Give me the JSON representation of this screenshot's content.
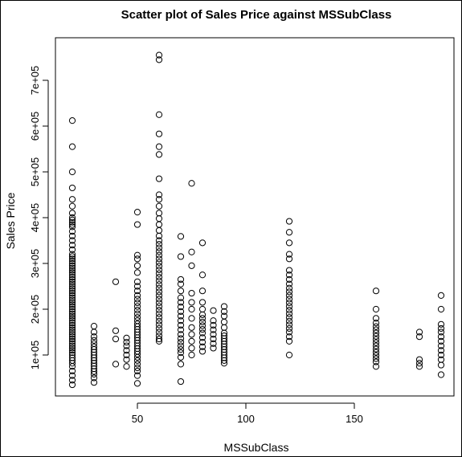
{
  "chart_data": {
    "type": "scatter",
    "title": "Scatter plot of Sales Price against  MSSubClass",
    "xlabel": "MSSubClass",
    "ylabel": "Sales Price",
    "xlim": [
      15,
      195
    ],
    "ylim": [
      0,
      760000
    ],
    "x_ticks": [
      50,
      100,
      150
    ],
    "x_tick_labels": [
      "50",
      "100",
      "150"
    ],
    "y_ticks": [
      100000,
      200000,
      300000,
      400000,
      500000,
      600000,
      700000
    ],
    "y_tick_labels": [
      "1e+05",
      "2e+05",
      "3e+05",
      "4e+05",
      "5e+05",
      "6e+05",
      "7e+05"
    ],
    "grid": false,
    "legend": "none",
    "marker": "open-circle",
    "point_color": "#000000",
    "points": [
      [
        20,
        35000
      ],
      [
        20,
        45000
      ],
      [
        20,
        55000
      ],
      [
        20,
        65000
      ],
      [
        20,
        75000
      ],
      [
        20,
        82000
      ],
      [
        20,
        88000
      ],
      [
        20,
        94000
      ],
      [
        20,
        100000
      ],
      [
        20,
        105000
      ],
      [
        20,
        110000
      ],
      [
        20,
        115000
      ],
      [
        20,
        120000
      ],
      [
        20,
        125000
      ],
      [
        20,
        130000
      ],
      [
        20,
        135000
      ],
      [
        20,
        140000
      ],
      [
        20,
        145000
      ],
      [
        20,
        150000
      ],
      [
        20,
        155000
      ],
      [
        20,
        160000
      ],
      [
        20,
        165000
      ],
      [
        20,
        170000
      ],
      [
        20,
        175000
      ],
      [
        20,
        180000
      ],
      [
        20,
        185000
      ],
      [
        20,
        190000
      ],
      [
        20,
        195000
      ],
      [
        20,
        200000
      ],
      [
        20,
        205000
      ],
      [
        20,
        210000
      ],
      [
        20,
        215000
      ],
      [
        20,
        220000
      ],
      [
        20,
        225000
      ],
      [
        20,
        230000
      ],
      [
        20,
        235000
      ],
      [
        20,
        240000
      ],
      [
        20,
        245000
      ],
      [
        20,
        250000
      ],
      [
        20,
        255000
      ],
      [
        20,
        260000
      ],
      [
        20,
        265000
      ],
      [
        20,
        270000
      ],
      [
        20,
        275000
      ],
      [
        20,
        280000
      ],
      [
        20,
        285000
      ],
      [
        20,
        290000
      ],
      [
        20,
        295000
      ],
      [
        20,
        300000
      ],
      [
        20,
        305000
      ],
      [
        20,
        310000
      ],
      [
        20,
        315000
      ],
      [
        20,
        320000
      ],
      [
        20,
        330000
      ],
      [
        20,
        340000
      ],
      [
        20,
        350000
      ],
      [
        20,
        360000
      ],
      [
        20,
        370000
      ],
      [
        20,
        380000
      ],
      [
        20,
        385000
      ],
      [
        20,
        390000
      ],
      [
        20,
        395000
      ],
      [
        20,
        400000
      ],
      [
        20,
        410000
      ],
      [
        20,
        425000
      ],
      [
        20,
        440000
      ],
      [
        20,
        465000
      ],
      [
        20,
        500000
      ],
      [
        20,
        555000
      ],
      [
        20,
        612000
      ],
      [
        30,
        40000
      ],
      [
        30,
        50000
      ],
      [
        30,
        58000
      ],
      [
        30,
        64000
      ],
      [
        30,
        70000
      ],
      [
        30,
        76000
      ],
      [
        30,
        82000
      ],
      [
        30,
        88000
      ],
      [
        30,
        94000
      ],
      [
        30,
        100000
      ],
      [
        30,
        106000
      ],
      [
        30,
        112000
      ],
      [
        30,
        118000
      ],
      [
        30,
        125000
      ],
      [
        30,
        132000
      ],
      [
        30,
        140000
      ],
      [
        30,
        150000
      ],
      [
        30,
        163000
      ],
      [
        40,
        80000
      ],
      [
        40,
        135000
      ],
      [
        40,
        153000
      ],
      [
        40,
        260000
      ],
      [
        45,
        75000
      ],
      [
        45,
        90000
      ],
      [
        45,
        100000
      ],
      [
        45,
        110000
      ],
      [
        45,
        120000
      ],
      [
        45,
        128000
      ],
      [
        45,
        137000
      ],
      [
        50,
        38000
      ],
      [
        50,
        55000
      ],
      [
        50,
        65000
      ],
      [
        50,
        72000
      ],
      [
        50,
        80000
      ],
      [
        50,
        88000
      ],
      [
        50,
        95000
      ],
      [
        50,
        102000
      ],
      [
        50,
        108000
      ],
      [
        50,
        114000
      ],
      [
        50,
        120000
      ],
      [
        50,
        126000
      ],
      [
        50,
        132000
      ],
      [
        50,
        138000
      ],
      [
        50,
        144000
      ],
      [
        50,
        150000
      ],
      [
        50,
        156000
      ],
      [
        50,
        162000
      ],
      [
        50,
        168000
      ],
      [
        50,
        175000
      ],
      [
        50,
        182000
      ],
      [
        50,
        190000
      ],
      [
        50,
        198000
      ],
      [
        50,
        206000
      ],
      [
        50,
        214000
      ],
      [
        50,
        222000
      ],
      [
        50,
        230000
      ],
      [
        50,
        240000
      ],
      [
        50,
        250000
      ],
      [
        50,
        260000
      ],
      [
        50,
        280000
      ],
      [
        50,
        295000
      ],
      [
        50,
        310000
      ],
      [
        50,
        318000
      ],
      [
        50,
        385000
      ],
      [
        50,
        412000
      ],
      [
        60,
        130000
      ],
      [
        60,
        135000
      ],
      [
        60,
        142000
      ],
      [
        60,
        150000
      ],
      [
        60,
        158000
      ],
      [
        60,
        166000
      ],
      [
        60,
        174000
      ],
      [
        60,
        182000
      ],
      [
        60,
        190000
      ],
      [
        60,
        198000
      ],
      [
        60,
        206000
      ],
      [
        60,
        214000
      ],
      [
        60,
        222000
      ],
      [
        60,
        230000
      ],
      [
        60,
        238000
      ],
      [
        60,
        246000
      ],
      [
        60,
        254000
      ],
      [
        60,
        262000
      ],
      [
        60,
        270000
      ],
      [
        60,
        278000
      ],
      [
        60,
        286000
      ],
      [
        60,
        294000
      ],
      [
        60,
        302000
      ],
      [
        60,
        310000
      ],
      [
        60,
        318000
      ],
      [
        60,
        326000
      ],
      [
        60,
        334000
      ],
      [
        60,
        342000
      ],
      [
        60,
        350000
      ],
      [
        60,
        360000
      ],
      [
        60,
        372000
      ],
      [
        60,
        385000
      ],
      [
        60,
        398000
      ],
      [
        60,
        410000
      ],
      [
        60,
        425000
      ],
      [
        60,
        440000
      ],
      [
        60,
        450000
      ],
      [
        60,
        485000
      ],
      [
        60,
        538000
      ],
      [
        60,
        555000
      ],
      [
        60,
        583000
      ],
      [
        60,
        625000
      ],
      [
        60,
        745000
      ],
      [
        60,
        755000
      ],
      [
        70,
        42000
      ],
      [
        70,
        80000
      ],
      [
        70,
        95000
      ],
      [
        70,
        105000
      ],
      [
        70,
        112000
      ],
      [
        70,
        120000
      ],
      [
        70,
        128000
      ],
      [
        70,
        136000
      ],
      [
        70,
        145000
      ],
      [
        70,
        155000
      ],
      [
        70,
        165000
      ],
      [
        70,
        175000
      ],
      [
        70,
        185000
      ],
      [
        70,
        195000
      ],
      [
        70,
        205000
      ],
      [
        70,
        215000
      ],
      [
        70,
        225000
      ],
      [
        70,
        240000
      ],
      [
        70,
        255000
      ],
      [
        70,
        265000
      ],
      [
        70,
        315000
      ],
      [
        70,
        359000
      ],
      [
        75,
        100000
      ],
      [
        75,
        115000
      ],
      [
        75,
        130000
      ],
      [
        75,
        145000
      ],
      [
        75,
        160000
      ],
      [
        75,
        180000
      ],
      [
        75,
        200000
      ],
      [
        75,
        215000
      ],
      [
        75,
        235000
      ],
      [
        75,
        295000
      ],
      [
        75,
        325000
      ],
      [
        75,
        475000
      ],
      [
        80,
        108000
      ],
      [
        80,
        118000
      ],
      [
        80,
        128000
      ],
      [
        80,
        138000
      ],
      [
        80,
        148000
      ],
      [
        80,
        156000
      ],
      [
        80,
        164000
      ],
      [
        80,
        172000
      ],
      [
        80,
        180000
      ],
      [
        80,
        188000
      ],
      [
        80,
        200000
      ],
      [
        80,
        215000
      ],
      [
        80,
        240000
      ],
      [
        80,
        275000
      ],
      [
        80,
        345000
      ],
      [
        85,
        115000
      ],
      [
        85,
        125000
      ],
      [
        85,
        135000
      ],
      [
        85,
        145000
      ],
      [
        85,
        155000
      ],
      [
        85,
        165000
      ],
      [
        85,
        175000
      ],
      [
        85,
        197000
      ],
      [
        90,
        82000
      ],
      [
        90,
        88000
      ],
      [
        90,
        94000
      ],
      [
        90,
        100000
      ],
      [
        90,
        106000
      ],
      [
        90,
        112000
      ],
      [
        90,
        118000
      ],
      [
        90,
        124000
      ],
      [
        90,
        130000
      ],
      [
        90,
        136000
      ],
      [
        90,
        142000
      ],
      [
        90,
        148000
      ],
      [
        90,
        160000
      ],
      [
        90,
        172000
      ],
      [
        90,
        185000
      ],
      [
        90,
        195000
      ],
      [
        90,
        206000
      ],
      [
        120,
        100000
      ],
      [
        120,
        130000
      ],
      [
        120,
        140000
      ],
      [
        120,
        150000
      ],
      [
        120,
        158000
      ],
      [
        120,
        166000
      ],
      [
        120,
        174000
      ],
      [
        120,
        182000
      ],
      [
        120,
        190000
      ],
      [
        120,
        198000
      ],
      [
        120,
        206000
      ],
      [
        120,
        214000
      ],
      [
        120,
        222000
      ],
      [
        120,
        230000
      ],
      [
        120,
        238000
      ],
      [
        120,
        246000
      ],
      [
        120,
        255000
      ],
      [
        120,
        265000
      ],
      [
        120,
        275000
      ],
      [
        120,
        285000
      ],
      [
        120,
        310000
      ],
      [
        120,
        320000
      ],
      [
        120,
        345000
      ],
      [
        120,
        368000
      ],
      [
        120,
        392000
      ],
      [
        160,
        75000
      ],
      [
        160,
        85000
      ],
      [
        160,
        92000
      ],
      [
        160,
        99000
      ],
      [
        160,
        106000
      ],
      [
        160,
        113000
      ],
      [
        160,
        120000
      ],
      [
        160,
        127000
      ],
      [
        160,
        134000
      ],
      [
        160,
        141000
      ],
      [
        160,
        148000
      ],
      [
        160,
        155000
      ],
      [
        160,
        162000
      ],
      [
        160,
        170000
      ],
      [
        160,
        180000
      ],
      [
        160,
        200000
      ],
      [
        160,
        240000
      ],
      [
        180,
        75000
      ],
      [
        180,
        82000
      ],
      [
        180,
        90000
      ],
      [
        180,
        140000
      ],
      [
        180,
        150000
      ],
      [
        190,
        57000
      ],
      [
        190,
        78000
      ],
      [
        190,
        90000
      ],
      [
        190,
        100000
      ],
      [
        190,
        110000
      ],
      [
        190,
        120000
      ],
      [
        190,
        130000
      ],
      [
        190,
        140000
      ],
      [
        190,
        150000
      ],
      [
        190,
        158000
      ],
      [
        190,
        167000
      ],
      [
        190,
        200000
      ],
      [
        190,
        230000
      ]
    ]
  }
}
